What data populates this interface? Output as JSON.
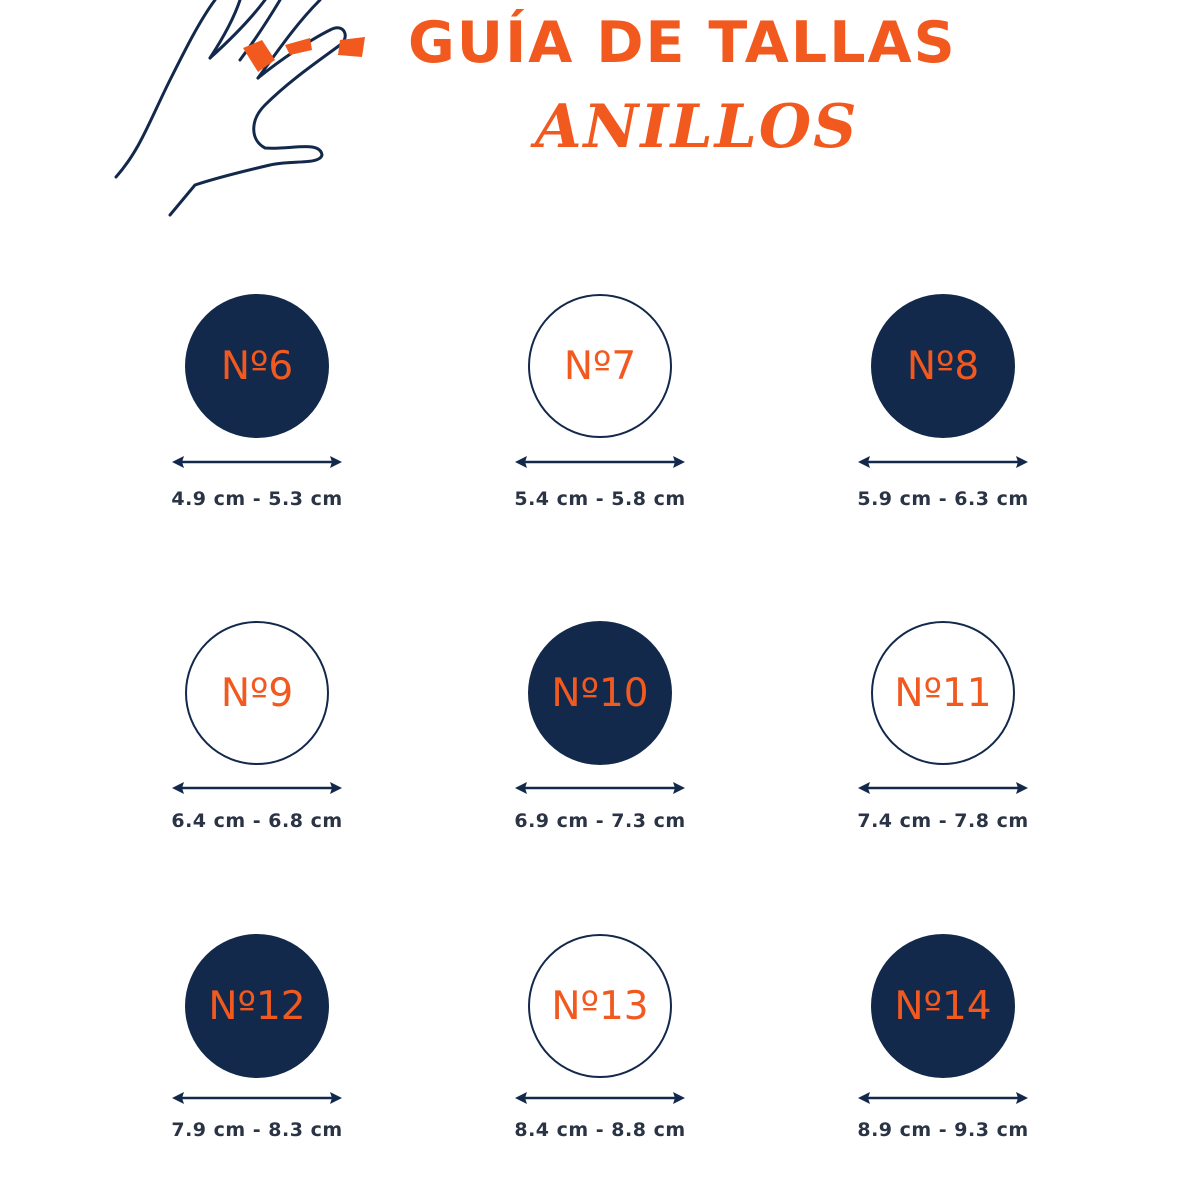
{
  "header": {
    "title": "GUÍA DE TALLAS",
    "subtitle": "ANILLOS"
  },
  "colors": {
    "accent": "#f2591f",
    "navy": "#13294b",
    "text": "#2b3445"
  },
  "sizes": [
    {
      "label": "Nº6",
      "range": "4.9 cm - 5.3 cm",
      "style": "filled"
    },
    {
      "label": "Nº7",
      "range": "5.4 cm - 5.8 cm",
      "style": "outline"
    },
    {
      "label": "Nº8",
      "range": "5.9 cm - 6.3 cm",
      "style": "filled"
    },
    {
      "label": "Nº9",
      "range": "6.4 cm - 6.8 cm",
      "style": "outline"
    },
    {
      "label": "Nº10",
      "range": "6.9 cm - 7.3 cm",
      "style": "filled"
    },
    {
      "label": "Nº11",
      "range": "7.4 cm - 7.8 cm",
      "style": "outline"
    },
    {
      "label": "Nº12",
      "range": "7.9 cm - 8.3 cm",
      "style": "filled"
    },
    {
      "label": "Nº13",
      "range": "8.4 cm - 8.8 cm",
      "style": "outline"
    },
    {
      "label": "Nº14",
      "range": "8.9 cm - 9.3 cm",
      "style": "filled"
    }
  ]
}
